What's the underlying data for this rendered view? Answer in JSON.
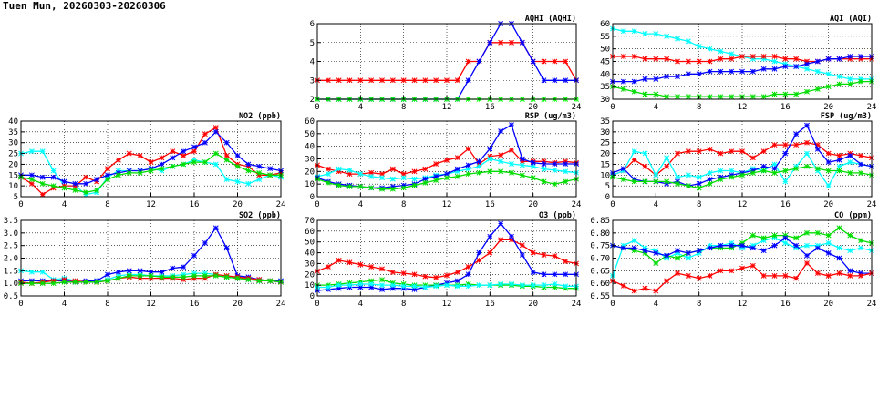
{
  "page": {
    "title": "Tuen Mun, 20260303-20260306"
  },
  "chart_data": [
    {
      "id": "aqhi",
      "type": "line",
      "title": "AQHI (AQHI)",
      "xlim": [
        0,
        24
      ],
      "xticks": [
        0,
        4,
        8,
        12,
        16,
        20,
        24
      ],
      "ylim": [
        2,
        6
      ],
      "yticks": [
        2,
        3,
        4,
        5,
        6
      ],
      "ytick_labels": [
        "2",
        "3",
        "4",
        "5",
        "6"
      ],
      "grid": true,
      "series": [
        {
          "color": "#ff0000",
          "values": [
            3,
            3,
            3,
            3,
            3,
            3,
            3,
            3,
            3,
            3,
            3,
            3,
            3,
            3,
            4,
            4,
            5,
            5,
            5,
            5,
            4,
            4,
            4,
            4,
            3
          ]
        },
        {
          "color": "#0000ff",
          "values": [
            2,
            2,
            2,
            2,
            2,
            2,
            2,
            2,
            2,
            2,
            2,
            2,
            2,
            2,
            3,
            4,
            5,
            6,
            6,
            5,
            4,
            3,
            3,
            3,
            3
          ]
        },
        {
          "color": "#00ff00",
          "values": [
            2,
            2,
            2,
            2,
            2,
            2,
            2,
            2,
            2,
            2,
            2,
            2,
            2,
            2,
            2,
            2,
            2,
            2,
            2,
            2,
            2,
            2,
            2,
            2,
            2
          ]
        }
      ]
    },
    {
      "id": "aqi",
      "type": "line",
      "title": "AQI (AQI)",
      "xlim": [
        0,
        24
      ],
      "xticks": [
        0,
        4,
        8,
        12,
        16,
        20,
        24
      ],
      "ylim": [
        30,
        60
      ],
      "yticks": [
        30,
        35,
        40,
        45,
        50,
        55,
        60
      ],
      "ytick_labels": [
        "30",
        "35",
        "40",
        "45",
        "50",
        "55",
        "60"
      ],
      "grid": true,
      "series": [
        {
          "color": "#00ffff",
          "values": [
            58,
            57,
            57,
            56,
            56,
            55,
            54,
            53,
            51,
            50,
            49,
            48,
            47,
            46,
            46,
            45,
            44,
            43,
            42,
            41,
            40,
            39,
            38,
            38,
            38
          ]
        },
        {
          "color": "#ff0000",
          "values": [
            47,
            47,
            47,
            46,
            46,
            46,
            45,
            45,
            45,
            45,
            46,
            46,
            47,
            47,
            47,
            47,
            46,
            46,
            45,
            45,
            46,
            46,
            46,
            46,
            46
          ]
        },
        {
          "color": "#0000ff",
          "values": [
            37,
            37,
            37,
            38,
            38,
            39,
            39,
            40,
            40,
            41,
            41,
            41,
            41,
            41,
            42,
            42,
            43,
            43,
            44,
            45,
            46,
            46,
            47,
            47,
            47
          ]
        },
        {
          "color": "#00dd00",
          "values": [
            35,
            34,
            33,
            32,
            32,
            31,
            31,
            31,
            31,
            31,
            31,
            31,
            31,
            31,
            31,
            32,
            32,
            32,
            33,
            34,
            35,
            36,
            36,
            37,
            37
          ]
        }
      ]
    },
    {
      "id": "no2",
      "type": "line",
      "title": "NO2 (ppb)",
      "xlim": [
        0,
        24
      ],
      "xticks": [
        0,
        4,
        8,
        12,
        16,
        20,
        24
      ],
      "ylim": [
        5,
        40
      ],
      "yticks": [
        5,
        10,
        15,
        20,
        25,
        30,
        35,
        40
      ],
      "ytick_labels": [
        "5",
        "10",
        "15",
        "20",
        "25",
        "30",
        "35",
        "40"
      ],
      "grid": true,
      "series": [
        {
          "color": "#00ffff",
          "values": [
            25,
            26,
            26,
            17,
            10,
            10,
            6,
            7,
            14,
            17,
            17,
            17,
            18,
            17,
            19,
            20,
            22,
            21,
            20,
            13,
            12,
            11,
            13,
            15,
            14
          ]
        },
        {
          "color": "#ff0000",
          "values": [
            14,
            11,
            6,
            9,
            10,
            10,
            14,
            12,
            18,
            22,
            25,
            24,
            21,
            23,
            26,
            24,
            26,
            34,
            37,
            24,
            20,
            19,
            15,
            15,
            16
          ]
        },
        {
          "color": "#0000ff",
          "values": [
            15,
            15,
            14,
            14,
            12,
            11,
            11,
            13,
            15,
            16,
            17,
            17,
            18,
            20,
            23,
            26,
            28,
            30,
            35,
            30,
            24,
            20,
            19,
            18,
            17
          ]
        },
        {
          "color": "#00dd00",
          "values": [
            14,
            13,
            11,
            10,
            9,
            8,
            7,
            8,
            13,
            15,
            16,
            16,
            17,
            18,
            19,
            20,
            21,
            21,
            25,
            22,
            19,
            17,
            16,
            15,
            15
          ]
        }
      ]
    },
    {
      "id": "rsp",
      "type": "line",
      "title": "RSP (ug/m3)",
      "xlim": [
        0,
        24
      ],
      "xticks": [
        0,
        4,
        8,
        12,
        16,
        20,
        24
      ],
      "ylim": [
        0,
        60
      ],
      "yticks": [
        0,
        10,
        20,
        30,
        40,
        50,
        60
      ],
      "ytick_labels": [
        "0",
        "10",
        "20",
        "30",
        "40",
        "50",
        "60"
      ],
      "grid": true,
      "series": [
        {
          "color": "#ff0000",
          "values": [
            25,
            22,
            20,
            18,
            18,
            19,
            18,
            22,
            18,
            20,
            22,
            26,
            29,
            31,
            38,
            26,
            32,
            33,
            37,
            28,
            28,
            28,
            27,
            28,
            27
          ]
        },
        {
          "color": "#00ffff",
          "values": [
            16,
            18,
            22,
            21,
            18,
            16,
            15,
            14,
            15,
            14,
            15,
            17,
            18,
            20,
            22,
            24,
            30,
            28,
            26,
            25,
            24,
            22,
            21,
            20,
            19
          ]
        },
        {
          "color": "#0000ff",
          "values": [
            15,
            12,
            10,
            9,
            8,
            7,
            7,
            8,
            9,
            10,
            14,
            16,
            18,
            22,
            25,
            28,
            38,
            52,
            57,
            30,
            27,
            26,
            26,
            26,
            26
          ]
        },
        {
          "color": "#00dd00",
          "values": [
            14,
            11,
            9,
            8,
            8,
            7,
            6,
            6,
            7,
            9,
            11,
            13,
            15,
            16,
            18,
            19,
            20,
            20,
            19,
            17,
            15,
            12,
            10,
            12,
            14
          ]
        }
      ]
    },
    {
      "id": "fsp",
      "type": "line",
      "title": "FSP (ug/m3)",
      "xlim": [
        0,
        24
      ],
      "xticks": [
        0,
        4,
        8,
        12,
        16,
        20,
        24
      ],
      "ylim": [
        0,
        35
      ],
      "yticks": [
        0,
        5,
        10,
        15,
        20,
        25,
        30,
        35
      ],
      "ytick_labels": [
        "0",
        "5",
        "10",
        "15",
        "20",
        "25",
        "30",
        "35"
      ],
      "grid": true,
      "series": [
        {
          "color": "#ff0000",
          "values": [
            10,
            12,
            17,
            14,
            10,
            14,
            20,
            21,
            21,
            22,
            20,
            21,
            21,
            18,
            21,
            24,
            24,
            24,
            25,
            24,
            20,
            19,
            20,
            19,
            18
          ]
        },
        {
          "color": "#00ffff",
          "values": [
            10,
            12,
            21,
            20,
            10,
            18,
            9,
            10,
            9,
            11,
            12,
            12,
            11,
            13,
            12,
            15,
            7,
            14,
            20,
            12,
            5,
            14,
            16,
            15,
            14
          ]
        },
        {
          "color": "#0000ff",
          "values": [
            11,
            13,
            8,
            7,
            7,
            6,
            7,
            5,
            6,
            8,
            9,
            10,
            11,
            12,
            14,
            13,
            20,
            29,
            33,
            22,
            16,
            17,
            19,
            15,
            14
          ]
        },
        {
          "color": "#00dd00",
          "values": [
            9,
            8,
            7,
            7,
            7,
            7,
            6,
            5,
            4,
            6,
            8,
            9,
            10,
            11,
            12,
            11,
            12,
            13,
            14,
            13,
            12,
            12,
            11,
            11,
            10
          ]
        }
      ]
    },
    {
      "id": "so2",
      "type": "line",
      "title": "SO2 (ppb)",
      "xlim": [
        0,
        24
      ],
      "xticks": [
        0,
        4,
        8,
        12,
        16,
        20,
        24
      ],
      "ylim": [
        0.5,
        3.5
      ],
      "yticks": [
        0.5,
        1.0,
        1.5,
        2.0,
        2.5,
        3.0,
        3.5
      ],
      "ytick_labels": [
        "0.5",
        "1.0",
        "1.5",
        "2.0",
        "2.5",
        "3.0",
        "3.5"
      ],
      "grid": true,
      "series": [
        {
          "color": "#00ffff",
          "values": [
            1.5,
            1.45,
            1.45,
            1.15,
            1.2,
            1.1,
            1.05,
            1.1,
            1.15,
            1.3,
            1.35,
            1.35,
            1.3,
            1.3,
            1.3,
            1.35,
            1.4,
            1.4,
            1.35,
            1.25,
            1.2,
            1.15,
            1.1,
            1.1,
            1.1
          ]
        },
        {
          "color": "#0000ff",
          "values": [
            1.1,
            1.1,
            1.1,
            1.1,
            1.1,
            1.05,
            1.1,
            1.1,
            1.35,
            1.45,
            1.5,
            1.5,
            1.45,
            1.45,
            1.6,
            1.65,
            2.1,
            2.6,
            3.2,
            2.4,
            1.3,
            1.25,
            1.15,
            1.1,
            1.1
          ]
        },
        {
          "color": "#ff0000",
          "values": [
            1.05,
            1.0,
            1.05,
            1.1,
            1.15,
            1.1,
            1.05,
            1.05,
            1.1,
            1.2,
            1.25,
            1.2,
            1.2,
            1.2,
            1.2,
            1.15,
            1.2,
            1.2,
            1.35,
            1.3,
            1.25,
            1.2,
            1.15,
            1.1,
            1.05
          ]
        },
        {
          "color": "#00dd00",
          "values": [
            1.0,
            1.0,
            1.0,
            1.0,
            1.05,
            1.05,
            1.05,
            1.05,
            1.1,
            1.2,
            1.3,
            1.3,
            1.3,
            1.25,
            1.25,
            1.25,
            1.3,
            1.3,
            1.3,
            1.25,
            1.2,
            1.15,
            1.1,
            1.1,
            1.05
          ]
        }
      ]
    },
    {
      "id": "o3",
      "type": "line",
      "title": "O3 (ppb)",
      "xlim": [
        0,
        24
      ],
      "xticks": [
        0,
        4,
        8,
        12,
        16,
        20,
        24
      ],
      "ylim": [
        0,
        70
      ],
      "yticks": [
        0,
        10,
        20,
        30,
        40,
        50,
        60,
        70
      ],
      "ytick_labels": [
        "0",
        "10",
        "20",
        "30",
        "40",
        "50",
        "60",
        "70"
      ],
      "grid": true,
      "series": [
        {
          "color": "#ff0000",
          "values": [
            23,
            27,
            33,
            31,
            29,
            27,
            25,
            22,
            21,
            20,
            18,
            17,
            19,
            22,
            27,
            33,
            40,
            52,
            52,
            47,
            40,
            38,
            37,
            32,
            30
          ]
        },
        {
          "color": "#0000ff",
          "values": [
            5,
            6,
            7,
            8,
            8,
            8,
            6,
            7,
            7,
            6,
            8,
            10,
            12,
            14,
            20,
            40,
            55,
            67,
            55,
            38,
            22,
            20,
            20,
            20,
            20
          ]
        },
        {
          "color": "#00dd00",
          "values": [
            10,
            10,
            11,
            12,
            13,
            14,
            15,
            12,
            11,
            10,
            10,
            10,
            10,
            10,
            11,
            10,
            10,
            10,
            10,
            9,
            9,
            8,
            8,
            7,
            7
          ]
        },
        {
          "color": "#00ffff",
          "values": [
            8,
            8,
            10,
            10,
            11,
            11,
            10,
            10,
            9,
            9,
            8,
            9,
            10,
            9,
            9,
            10,
            10,
            11,
            11,
            10,
            10,
            10,
            11,
            9,
            9
          ]
        }
      ]
    },
    {
      "id": "co",
      "type": "line",
      "title": "CO (ppm)",
      "xlim": [
        0,
        24
      ],
      "xticks": [
        0,
        4,
        8,
        12,
        16,
        20,
        24
      ],
      "ylim": [
        0.55,
        0.85
      ],
      "yticks": [
        0.55,
        0.6,
        0.65,
        0.7,
        0.75,
        0.8,
        0.85
      ],
      "ytick_labels": [
        "0.55",
        "0.60",
        "0.65",
        "0.70",
        "0.75",
        "0.80",
        "0.85"
      ],
      "grid": true,
      "series": [
        {
          "color": "#00ffff",
          "values": [
            0.63,
            0.75,
            0.77,
            0.74,
            0.73,
            0.7,
            0.72,
            0.7,
            0.72,
            0.75,
            0.75,
            0.76,
            0.74,
            0.75,
            0.77,
            0.78,
            0.76,
            0.74,
            0.75,
            0.75,
            0.76,
            0.74,
            0.73,
            0.74,
            0.73
          ]
        },
        {
          "color": "#00dd00",
          "values": [
            0.75,
            0.74,
            0.73,
            0.72,
            0.68,
            0.71,
            0.7,
            0.72,
            0.73,
            0.74,
            0.74,
            0.74,
            0.76,
            0.79,
            0.78,
            0.79,
            0.79,
            0.78,
            0.8,
            0.8,
            0.79,
            0.82,
            0.79,
            0.77,
            0.76
          ]
        },
        {
          "color": "#0000ff",
          "values": [
            0.75,
            0.74,
            0.74,
            0.73,
            0.72,
            0.71,
            0.73,
            0.72,
            0.73,
            0.74,
            0.75,
            0.75,
            0.75,
            0.74,
            0.73,
            0.75,
            0.78,
            0.75,
            0.71,
            0.74,
            0.72,
            0.7,
            0.65,
            0.64,
            0.64
          ]
        },
        {
          "color": "#ff0000",
          "values": [
            0.61,
            0.59,
            0.57,
            0.58,
            0.57,
            0.61,
            0.64,
            0.63,
            0.62,
            0.63,
            0.65,
            0.65,
            0.66,
            0.67,
            0.63,
            0.63,
            0.63,
            0.62,
            0.68,
            0.64,
            0.63,
            0.64,
            0.63,
            0.63,
            0.64
          ]
        }
      ]
    }
  ]
}
